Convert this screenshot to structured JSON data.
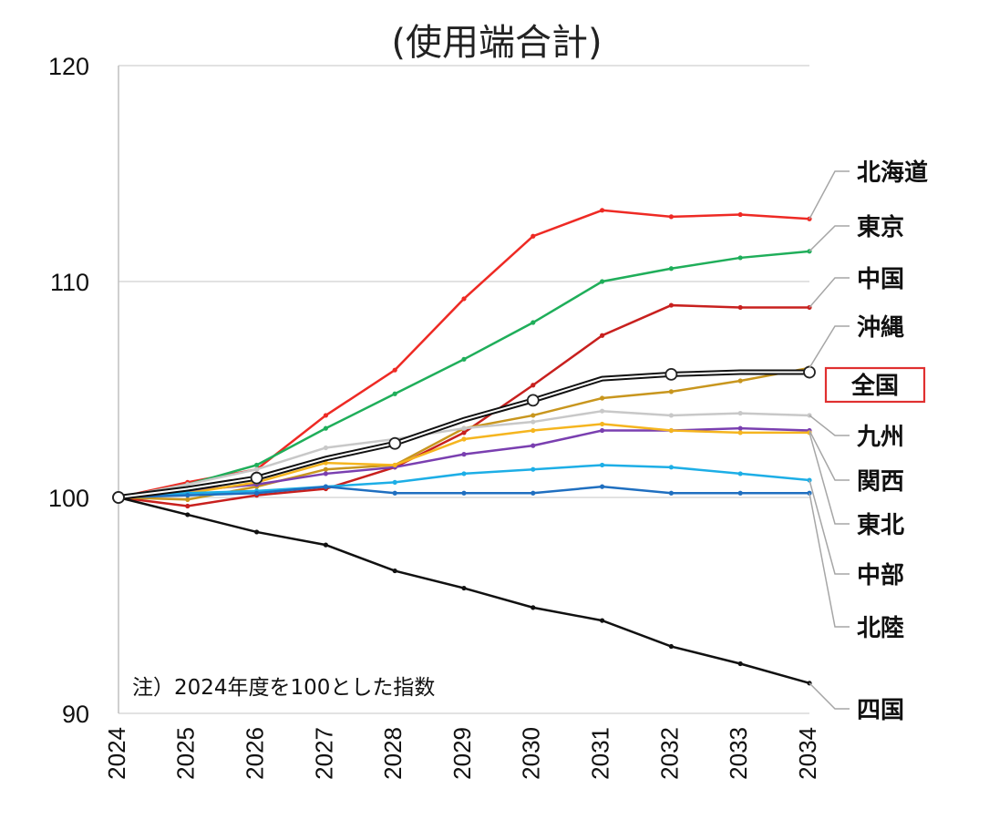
{
  "chart_data": {
    "type": "line",
    "title": "(使用端合計)",
    "note": "注）2024年度を100とした指数",
    "x": [
      "2024",
      "2025",
      "2026",
      "2027",
      "2028",
      "2029",
      "2030",
      "2031",
      "2032",
      "2033",
      "2034"
    ],
    "ylim": [
      90,
      120
    ],
    "yticks": [
      "90",
      "100",
      "110",
      "120"
    ],
    "grid": true,
    "highlight_series": "全国",
    "series": [
      {
        "name": "北海道",
        "color": "#ee2a24",
        "values": [
          100,
          100.7,
          101.3,
          103.8,
          105.9,
          109.2,
          112.1,
          113.3,
          113.0,
          113.1,
          112.9
        ]
      },
      {
        "name": "東京",
        "color": "#1fae5a",
        "values": [
          100,
          100.6,
          101.5,
          103.2,
          104.8,
          106.4,
          108.1,
          110.0,
          110.6,
          111.1,
          111.4
        ]
      },
      {
        "name": "中国",
        "color": "#c8201e",
        "values": [
          100,
          99.6,
          100.1,
          100.4,
          101.4,
          103.0,
          105.2,
          107.5,
          108.9,
          108.8,
          108.8
        ]
      },
      {
        "name": "沖縄",
        "color": "#c8961e",
        "values": [
          100,
          99.9,
          100.5,
          101.3,
          101.5,
          103.2,
          103.8,
          104.6,
          104.9,
          105.4,
          106.0
        ]
      },
      {
        "name": "九州",
        "color": "#c8c8c8",
        "values": [
          100,
          100.6,
          101.3,
          102.3,
          102.7,
          103.2,
          103.5,
          104.0,
          103.8,
          103.9,
          103.8
        ]
      },
      {
        "name": "関西",
        "color": "#7a3fb0",
        "values": [
          100,
          100.3,
          100.6,
          101.1,
          101.4,
          102.0,
          102.4,
          103.1,
          103.1,
          103.2,
          103.1
        ]
      },
      {
        "name": "東北",
        "color": "#f5b51f",
        "values": [
          100,
          100.2,
          100.7,
          101.6,
          101.5,
          102.7,
          103.1,
          103.4,
          103.1,
          103.0,
          103.0
        ]
      },
      {
        "name": "中部",
        "color": "#1daee6",
        "values": [
          100,
          100.2,
          100.3,
          100.5,
          100.7,
          101.1,
          101.3,
          101.5,
          101.4,
          101.1,
          100.8
        ]
      },
      {
        "name": "北陸",
        "color": "#1f6fc0",
        "values": [
          100,
          100.1,
          100.2,
          100.5,
          100.2,
          100.2,
          100.2,
          100.5,
          100.2,
          100.2,
          100.2
        ]
      },
      {
        "name": "四国",
        "color": "#111111",
        "values": [
          100,
          99.2,
          98.4,
          97.8,
          96.6,
          95.8,
          94.9,
          94.3,
          93.1,
          92.3,
          91.4
        ]
      },
      {
        "name": "全国",
        "color": "#111111",
        "values": [
          100,
          100.4,
          100.9,
          101.8,
          102.5,
          103.6,
          104.5,
          105.5,
          105.7,
          105.8,
          105.8
        ]
      }
    ],
    "labels": [
      {
        "name": "北海道",
        "ref": "北海道"
      },
      {
        "name": "東京",
        "ref": "東京"
      },
      {
        "name": "中国",
        "ref": "中国"
      },
      {
        "name": "沖縄",
        "ref": "沖縄"
      },
      {
        "name": "全国",
        "ref": "全国"
      },
      {
        "name": "九州",
        "ref": "九州"
      },
      {
        "name": "関西",
        "ref": "関西"
      },
      {
        "name": "東北",
        "ref": "東北"
      },
      {
        "name": "中部",
        "ref": "中部"
      },
      {
        "name": "北陸",
        "ref": "北陸"
      },
      {
        "name": "四国",
        "ref": "四国"
      }
    ]
  }
}
